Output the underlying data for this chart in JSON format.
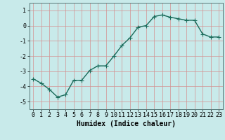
{
  "x": [
    0,
    1,
    2,
    3,
    4,
    5,
    6,
    7,
    8,
    9,
    10,
    11,
    12,
    13,
    14,
    15,
    16,
    17,
    18,
    19,
    20,
    21,
    22,
    23
  ],
  "y": [
    -3.5,
    -3.8,
    -4.2,
    -4.7,
    -4.55,
    -3.6,
    -3.6,
    -2.95,
    -2.65,
    -2.65,
    -2.0,
    -1.3,
    -0.8,
    -0.1,
    0.0,
    0.6,
    0.7,
    0.55,
    0.45,
    0.35,
    0.35,
    -0.55,
    -0.75,
    -0.75
  ],
  "line_color": "#1a6b5a",
  "marker": "+",
  "marker_color": "#1a6b5a",
  "bg_color": "#c8eaea",
  "grid_color": "#d49090",
  "xlabel": "Humidex (Indice chaleur)",
  "xlabel_fontsize": 7,
  "xlim": [
    -0.5,
    23.5
  ],
  "ylim": [
    -5.5,
    1.5
  ],
  "yticks": [
    -5,
    -4,
    -3,
    -2,
    -1,
    0,
    1
  ],
  "xtick_labels": [
    "0",
    "1",
    "2",
    "3",
    "4",
    "5",
    "6",
    "7",
    "8",
    "9",
    "10",
    "11",
    "12",
    "13",
    "14",
    "15",
    "16",
    "17",
    "18",
    "19",
    "20",
    "21",
    "22",
    "23"
  ],
  "tick_fontsize": 6,
  "line_width": 1.0,
  "marker_size": 4
}
